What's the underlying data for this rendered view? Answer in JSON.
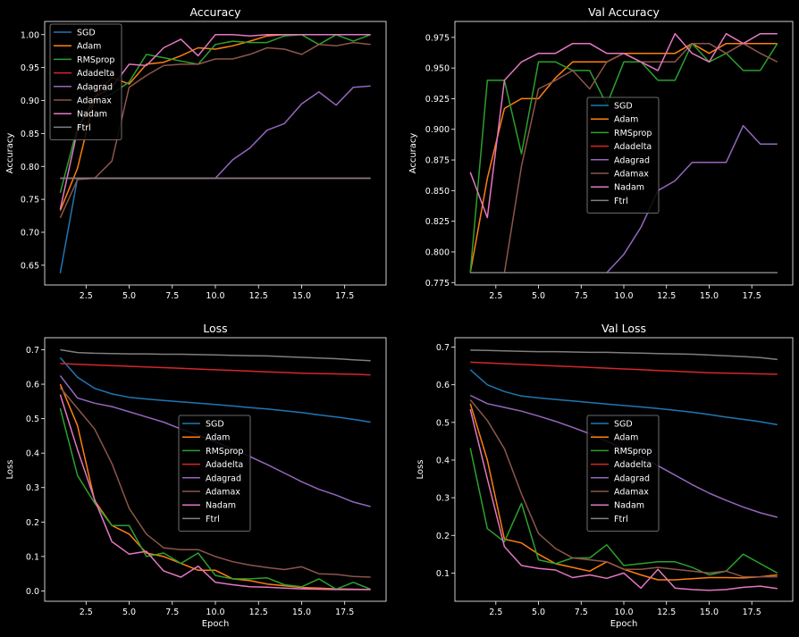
{
  "chart_data": [
    {
      "type": "line",
      "title": "Accuracy",
      "xlabel": "",
      "ylabel": "Accuracy",
      "xlim": [
        0.1,
        19.9
      ],
      "ylim": [
        0.62,
        1.02
      ],
      "xticks": [
        2.5,
        5.0,
        7.5,
        10.0,
        12.5,
        15.0,
        17.5
      ],
      "yticks": [
        0.65,
        0.7,
        0.75,
        0.8,
        0.85,
        0.9,
        0.95,
        1.0
      ],
      "ytick_decimals": 2,
      "legend_position": "upper left",
      "x": [
        1,
        2,
        3,
        4,
        5,
        6,
        7,
        8,
        9,
        10,
        11,
        12,
        13,
        14,
        15,
        16,
        17,
        18,
        19
      ],
      "series": [
        {
          "name": "SGD",
          "color": "#1f77b4",
          "values": [
            0.638,
            0.782,
            0.782,
            0.782,
            0.782,
            0.782,
            0.782,
            0.782,
            0.782,
            0.782,
            0.782,
            0.782,
            0.782,
            0.782,
            0.782,
            0.782,
            0.782,
            0.782,
            0.782
          ]
        },
        {
          "name": "Adam",
          "color": "#ff7f0e",
          "values": [
            0.733,
            0.797,
            0.905,
            0.935,
            0.925,
            0.955,
            0.958,
            0.968,
            0.98,
            0.978,
            0.983,
            0.99,
            0.998,
            1.0,
            1.0,
            1.0,
            1.0,
            1.0,
            1.0
          ]
        },
        {
          "name": "RMSprop",
          "color": "#2ca02c",
          "values": [
            0.76,
            0.86,
            0.9,
            0.91,
            0.928,
            0.97,
            0.965,
            0.96,
            0.955,
            0.985,
            0.99,
            0.988,
            0.988,
            0.998,
            1.0,
            0.985,
            1.0,
            0.99,
            1.0
          ]
        },
        {
          "name": "Adadelta",
          "color": "#d62728",
          "values": [
            0.782,
            0.782,
            0.782,
            0.782,
            0.782,
            0.782,
            0.782,
            0.782,
            0.782,
            0.782,
            0.782,
            0.782,
            0.782,
            0.782,
            0.782,
            0.782,
            0.782,
            0.782,
            0.782
          ]
        },
        {
          "name": "Adagrad",
          "color": "#9467bd",
          "values": [
            0.782,
            0.782,
            0.782,
            0.782,
            0.782,
            0.782,
            0.782,
            0.782,
            0.782,
            0.782,
            0.81,
            0.828,
            0.855,
            0.865,
            0.895,
            0.913,
            0.893,
            0.92,
            0.922
          ]
        },
        {
          "name": "Adamax",
          "color": "#8c564b",
          "values": [
            0.722,
            0.78,
            0.782,
            0.808,
            0.92,
            0.938,
            0.953,
            0.955,
            0.955,
            0.963,
            0.963,
            0.97,
            0.98,
            0.978,
            0.97,
            0.985,
            0.983,
            0.988,
            0.985
          ]
        },
        {
          "name": "Nadam",
          "color": "#e377c2",
          "values": [
            0.735,
            0.855,
            0.905,
            0.92,
            0.955,
            0.953,
            0.98,
            0.993,
            0.968,
            1.0,
            1.0,
            0.998,
            1.0,
            1.0,
            1.0,
            1.0,
            1.0,
            1.0,
            1.0
          ]
        },
        {
          "name": "Ftrl",
          "color": "#7f7f7f",
          "values": [
            0.782,
            0.782,
            0.782,
            0.782,
            0.782,
            0.782,
            0.782,
            0.782,
            0.782,
            0.782,
            0.782,
            0.782,
            0.782,
            0.782,
            0.782,
            0.782,
            0.782,
            0.782,
            0.782
          ]
        }
      ]
    },
    {
      "type": "line",
      "title": "Val Accuracy",
      "xlabel": "",
      "ylabel": "Accuracy",
      "xlim": [
        0.1,
        19.9
      ],
      "ylim": [
        0.773,
        0.988
      ],
      "xticks": [
        2.5,
        5.0,
        7.5,
        10.0,
        12.5,
        15.0,
        17.5
      ],
      "yticks": [
        0.775,
        0.8,
        0.825,
        0.85,
        0.875,
        0.9,
        0.925,
        0.95,
        0.975
      ],
      "ytick_decimals": 3,
      "legend_position": "center",
      "x": [
        1,
        2,
        3,
        4,
        5,
        6,
        7,
        8,
        9,
        10,
        11,
        12,
        13,
        14,
        15,
        16,
        17,
        18,
        19
      ],
      "series": [
        {
          "name": "SGD",
          "color": "#1f77b4",
          "values": [
            0.783,
            0.783,
            0.783,
            0.783,
            0.783,
            0.783,
            0.783,
            0.783,
            0.783,
            0.783,
            0.783,
            0.783,
            0.783,
            0.783,
            0.783,
            0.783,
            0.783,
            0.783,
            0.783
          ]
        },
        {
          "name": "Adam",
          "color": "#ff7f0e",
          "values": [
            0.783,
            0.86,
            0.917,
            0.925,
            0.925,
            0.942,
            0.955,
            0.955,
            0.955,
            0.962,
            0.962,
            0.962,
            0.962,
            0.97,
            0.962,
            0.97,
            0.97,
            0.97,
            0.97
          ]
        },
        {
          "name": "RMSprop",
          "color": "#2ca02c",
          "values": [
            0.783,
            0.94,
            0.94,
            0.88,
            0.955,
            0.955,
            0.948,
            0.948,
            0.92,
            0.955,
            0.955,
            0.94,
            0.94,
            0.97,
            0.955,
            0.962,
            0.948,
            0.948,
            0.97
          ]
        },
        {
          "name": "Adadelta",
          "color": "#d62728",
          "values": [
            0.783,
            0.783,
            0.783,
            0.783,
            0.783,
            0.783,
            0.783,
            0.783,
            0.783,
            0.783,
            0.783,
            0.783,
            0.783,
            0.783,
            0.783,
            0.783,
            0.783,
            0.783,
            0.783
          ]
        },
        {
          "name": "Adagrad",
          "color": "#9467bd",
          "values": [
            0.783,
            0.783,
            0.783,
            0.783,
            0.783,
            0.783,
            0.783,
            0.783,
            0.783,
            0.798,
            0.82,
            0.85,
            0.858,
            0.873,
            0.873,
            0.873,
            0.903,
            0.888,
            0.888
          ]
        },
        {
          "name": "Adamax",
          "color": "#8c564b",
          "values": [
            0.783,
            0.783,
            0.783,
            0.87,
            0.933,
            0.94,
            0.948,
            0.933,
            0.955,
            0.962,
            0.955,
            0.955,
            0.955,
            0.97,
            0.97,
            0.962,
            0.97,
            0.962,
            0.955
          ]
        },
        {
          "name": "Nadam",
          "color": "#e377c2",
          "values": [
            0.865,
            0.828,
            0.94,
            0.955,
            0.962,
            0.962,
            0.97,
            0.97,
            0.962,
            0.962,
            0.955,
            0.948,
            0.978,
            0.962,
            0.955,
            0.978,
            0.97,
            0.978,
            0.978
          ]
        },
        {
          "name": "Ftrl",
          "color": "#7f7f7f",
          "values": [
            0.783,
            0.783,
            0.783,
            0.783,
            0.783,
            0.783,
            0.783,
            0.783,
            0.783,
            0.783,
            0.783,
            0.783,
            0.783,
            0.783,
            0.783,
            0.783,
            0.783,
            0.783,
            0.783
          ]
        }
      ]
    },
    {
      "type": "line",
      "title": "Loss",
      "xlabel": "Epoch",
      "ylabel": "Loss",
      "xlim": [
        0.1,
        19.9
      ],
      "ylim": [
        -0.03,
        0.735
      ],
      "xticks": [
        2.5,
        5.0,
        7.5,
        10.0,
        12.5,
        15.0,
        17.5
      ],
      "yticks": [
        0.0,
        0.1,
        0.2,
        0.3,
        0.4,
        0.5,
        0.6,
        0.7
      ],
      "ytick_decimals": 1,
      "legend_position": "center",
      "x": [
        1,
        2,
        3,
        4,
        5,
        6,
        7,
        8,
        9,
        10,
        11,
        12,
        13,
        14,
        15,
        16,
        17,
        18,
        19
      ],
      "series": [
        {
          "name": "SGD",
          "color": "#1f77b4",
          "values": [
            0.677,
            0.62,
            0.588,
            0.572,
            0.562,
            0.557,
            0.553,
            0.549,
            0.545,
            0.541,
            0.537,
            0.532,
            0.528,
            0.523,
            0.518,
            0.511,
            0.505,
            0.498,
            0.49
          ]
        },
        {
          "name": "Adam",
          "color": "#ff7f0e",
          "values": [
            0.6,
            0.48,
            0.262,
            0.19,
            0.165,
            0.11,
            0.1,
            0.08,
            0.06,
            0.06,
            0.035,
            0.03,
            0.02,
            0.015,
            0.01,
            0.008,
            0.006,
            0.005,
            0.004
          ]
        },
        {
          "name": "RMSprop",
          "color": "#2ca02c",
          "values": [
            0.53,
            0.335,
            0.255,
            0.19,
            0.19,
            0.1,
            0.11,
            0.08,
            0.11,
            0.045,
            0.035,
            0.035,
            0.038,
            0.018,
            0.012,
            0.035,
            0.005,
            0.025,
            0.005
          ]
        },
        {
          "name": "Adadelta",
          "color": "#d62728",
          "values": [
            0.66,
            0.658,
            0.656,
            0.654,
            0.652,
            0.65,
            0.648,
            0.646,
            0.644,
            0.642,
            0.64,
            0.638,
            0.636,
            0.634,
            0.632,
            0.631,
            0.63,
            0.629,
            0.627
          ]
        },
        {
          "name": "Adagrad",
          "color": "#9467bd",
          "values": [
            0.625,
            0.56,
            0.545,
            0.535,
            0.52,
            0.505,
            0.49,
            0.47,
            0.452,
            0.433,
            0.412,
            0.39,
            0.367,
            0.342,
            0.317,
            0.295,
            0.278,
            0.258,
            0.245
          ]
        },
        {
          "name": "Adamax",
          "color": "#8c564b",
          "values": [
            0.59,
            0.53,
            0.47,
            0.37,
            0.24,
            0.165,
            0.125,
            0.12,
            0.12,
            0.1,
            0.085,
            0.075,
            0.068,
            0.062,
            0.07,
            0.05,
            0.048,
            0.042,
            0.04
          ]
        },
        {
          "name": "Nadam",
          "color": "#e377c2",
          "values": [
            0.57,
            0.41,
            0.265,
            0.143,
            0.107,
            0.115,
            0.058,
            0.04,
            0.072,
            0.025,
            0.018,
            0.012,
            0.011,
            0.008,
            0.006,
            0.005,
            0.004,
            0.004,
            0.004
          ]
        },
        {
          "name": "Ftrl",
          "color": "#7f7f7f",
          "values": [
            0.7,
            0.692,
            0.69,
            0.689,
            0.688,
            0.688,
            0.687,
            0.687,
            0.686,
            0.685,
            0.684,
            0.683,
            0.682,
            0.68,
            0.678,
            0.676,
            0.674,
            0.671,
            0.668
          ]
        }
      ]
    },
    {
      "type": "line",
      "title": "Val Loss",
      "xlabel": "Epoch",
      "ylabel": "Loss",
      "xlim": [
        0.1,
        19.9
      ],
      "ylim": [
        0.025,
        0.725
      ],
      "xticks": [
        2.5,
        5.0,
        7.5,
        10.0,
        12.5,
        15.0,
        17.5
      ],
      "yticks": [
        0.1,
        0.2,
        0.3,
        0.4,
        0.5,
        0.6,
        0.7
      ],
      "ytick_decimals": 1,
      "legend_position": "center",
      "x": [
        1,
        2,
        3,
        4,
        5,
        6,
        7,
        8,
        9,
        10,
        11,
        12,
        13,
        14,
        15,
        16,
        17,
        18,
        19
      ],
      "series": [
        {
          "name": "SGD",
          "color": "#1f77b4",
          "values": [
            0.64,
            0.6,
            0.582,
            0.57,
            0.565,
            0.561,
            0.557,
            0.553,
            0.549,
            0.545,
            0.541,
            0.537,
            0.532,
            0.527,
            0.521,
            0.514,
            0.508,
            0.502,
            0.494
          ]
        },
        {
          "name": "Adam",
          "color": "#ff7f0e",
          "values": [
            0.55,
            0.4,
            0.19,
            0.18,
            0.15,
            0.125,
            0.115,
            0.105,
            0.13,
            0.11,
            0.095,
            0.082,
            0.082,
            0.085,
            0.088,
            0.088,
            0.087,
            0.09,
            0.095
          ]
        },
        {
          "name": "RMSprop",
          "color": "#2ca02c",
          "values": [
            0.432,
            0.218,
            0.183,
            0.285,
            0.135,
            0.125,
            0.14,
            0.14,
            0.175,
            0.12,
            0.125,
            0.13,
            0.13,
            0.115,
            0.095,
            0.105,
            0.15,
            0.125,
            0.1
          ]
        },
        {
          "name": "Adadelta",
          "color": "#d62728",
          "values": [
            0.66,
            0.658,
            0.656,
            0.654,
            0.652,
            0.65,
            0.648,
            0.646,
            0.644,
            0.642,
            0.64,
            0.638,
            0.636,
            0.634,
            0.632,
            0.631,
            0.63,
            0.629,
            0.628
          ]
        },
        {
          "name": "Adagrad",
          "color": "#9467bd",
          "values": [
            0.572,
            0.55,
            0.54,
            0.53,
            0.517,
            0.503,
            0.487,
            0.47,
            0.45,
            0.43,
            0.408,
            0.385,
            0.36,
            0.335,
            0.312,
            0.293,
            0.275,
            0.26,
            0.248
          ]
        },
        {
          "name": "Adamax",
          "color": "#8c564b",
          "values": [
            0.56,
            0.505,
            0.43,
            0.31,
            0.205,
            0.165,
            0.14,
            0.135,
            0.13,
            0.11,
            0.11,
            0.115,
            0.11,
            0.105,
            0.1,
            0.105,
            0.09,
            0.09,
            0.09
          ]
        },
        {
          "name": "Nadam",
          "color": "#e377c2",
          "values": [
            0.535,
            0.35,
            0.17,
            0.12,
            0.112,
            0.108,
            0.088,
            0.095,
            0.086,
            0.1,
            0.06,
            0.11,
            0.06,
            0.056,
            0.054,
            0.056,
            0.062,
            0.065,
            0.059
          ]
        },
        {
          "name": "Ftrl",
          "color": "#7f7f7f",
          "values": [
            0.692,
            0.691,
            0.69,
            0.689,
            0.688,
            0.688,
            0.687,
            0.686,
            0.686,
            0.685,
            0.684,
            0.683,
            0.682,
            0.681,
            0.679,
            0.677,
            0.675,
            0.672,
            0.667
          ]
        }
      ]
    }
  ]
}
